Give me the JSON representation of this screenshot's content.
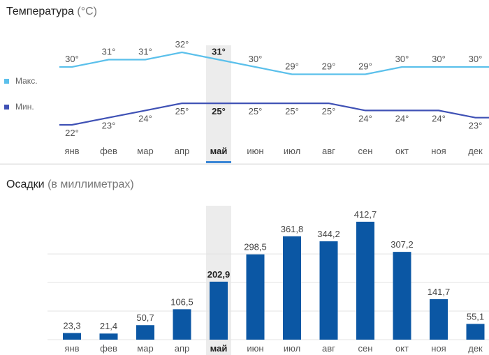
{
  "temperature": {
    "title": "Температура",
    "unit": "(°C)",
    "legend_max": "Макс.",
    "legend_min": "Мин.",
    "max_color": "#5bc0eb",
    "min_color": "#3f51b5",
    "selected_index": 4
  },
  "precipitation": {
    "title": "Осадки",
    "unit": "(в миллиметрах)",
    "bar_color": "#0b57a4",
    "selected_index": 4
  },
  "chart_data": [
    {
      "type": "line",
      "title": "Температура (°C)",
      "categories": [
        "янв",
        "фев",
        "мар",
        "апр",
        "май",
        "июн",
        "июл",
        "авг",
        "сен",
        "окт",
        "ноя",
        "дек"
      ],
      "series": [
        {
          "name": "Макс.",
          "values": [
            30,
            31,
            31,
            32,
            31,
            30,
            29,
            29,
            29,
            30,
            30,
            30
          ],
          "labels": [
            "30°",
            "31°",
            "31°",
            "32°",
            "31°",
            "30°",
            "29°",
            "29°",
            "29°",
            "30°",
            "30°",
            "30°"
          ]
        },
        {
          "name": "Мин.",
          "values": [
            22,
            23,
            24,
            25,
            25,
            25,
            25,
            25,
            24,
            24,
            24,
            23
          ],
          "labels": [
            "22°",
            "23°",
            "24°",
            "25°",
            "25°",
            "25°",
            "25°",
            "25°",
            "24°",
            "24°",
            "24°",
            "23°"
          ]
        }
      ],
      "legend": "left"
    },
    {
      "type": "bar",
      "title": "Осадки (в миллиметрах)",
      "categories": [
        "янв",
        "фев",
        "мар",
        "апр",
        "май",
        "июн",
        "июл",
        "авг",
        "сен",
        "окт",
        "ноя",
        "дек"
      ],
      "values": [
        23.3,
        21.4,
        50.7,
        106.5,
        202.9,
        298.5,
        361.8,
        344.2,
        412.7,
        307.2,
        141.7,
        55.1
      ],
      "labels": [
        "23,3",
        "21,4",
        "50,7",
        "106,5",
        "202,9",
        "298,5",
        "361,8",
        "344,2",
        "412,7",
        "307,2",
        "141,7",
        "55,1"
      ],
      "grid": true
    }
  ]
}
